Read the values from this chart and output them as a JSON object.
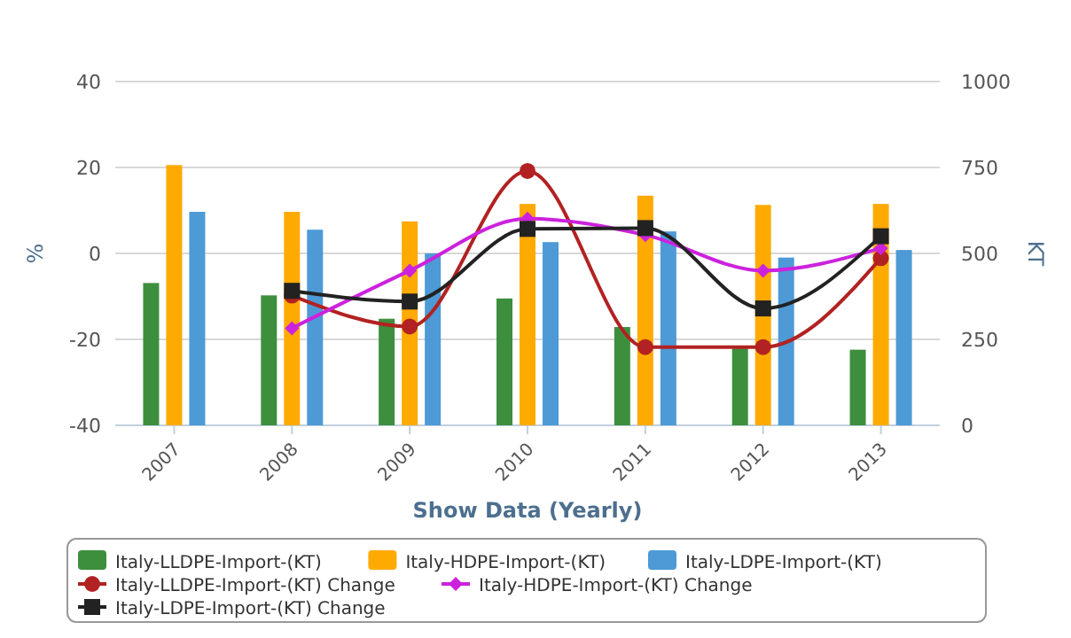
{
  "chart_data": {
    "type": "bar",
    "xlabel": "Show Data (Yearly)",
    "ylabel": "%",
    "y2label": "KT",
    "categories": [
      "2007",
      "2008",
      "2009",
      "2010",
      "2011",
      "2012",
      "2013"
    ],
    "ylim": [
      -40,
      40
    ],
    "yticks": [
      -40,
      -20,
      0,
      20,
      40
    ],
    "y2lim": [
      0,
      1000
    ],
    "y2ticks": [
      0,
      250,
      500,
      750,
      1000
    ],
    "grid": "y",
    "legend": "bottom",
    "series": [
      {
        "name": "Italy-LLDPE-Import-(KT)",
        "axis": "y2",
        "color": "#3d8f3d",
        "values": [
          414,
          378,
          310,
          369,
          286,
          226,
          220
        ]
      },
      {
        "name": "Italy-HDPE-Import-(KT)",
        "axis": "y2",
        "color": "#ffaa00",
        "values": [
          757,
          621,
          593,
          644,
          668,
          641,
          644
        ]
      },
      {
        "name": "Italy-LDPE-Import-(KT)",
        "axis": "y2",
        "color": "#4d9ad6",
        "values": [
          621,
          569,
          500,
          533,
          564,
          488,
          510
        ]
      },
      {
        "name": "Italy-LLDPE-Import-(KT) Change",
        "type": "line",
        "marker": "circle",
        "color": "#b22222",
        "values": [
          null,
          -9.8,
          -17,
          19.2,
          -21.8,
          -21.8,
          -1.1
        ]
      },
      {
        "name": "Italy-HDPE-Import-(KT) Change",
        "type": "line",
        "marker": "diamond",
        "color": "#cc22dd",
        "values": [
          null,
          -17.4,
          -4,
          8.1,
          4.3,
          -4,
          1.2
        ]
      },
      {
        "name": "Italy-LDPE-Import-(KT) Change",
        "type": "line",
        "marker": "square",
        "color": "#222222",
        "values": [
          null,
          -8.7,
          -11.2,
          5.7,
          5.9,
          -12.8,
          4.0
        ]
      }
    ]
  }
}
